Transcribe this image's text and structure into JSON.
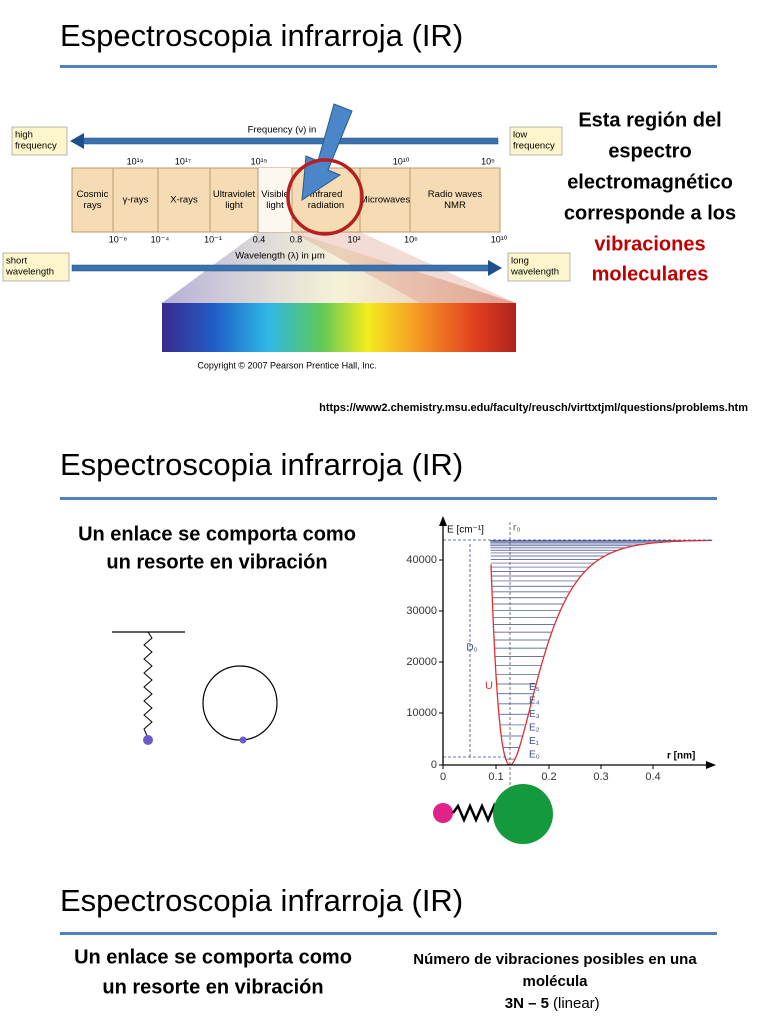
{
  "slides": [
    {
      "title": "Espectroscopia infrarroja (IR)",
      "figure": {
        "frequency_axis": "Frequency (ν) in",
        "high_frequency": [
          "high",
          "frequency"
        ],
        "low_frequency": [
          "low",
          "frequency"
        ],
        "frequency_ticks": [
          "10¹⁹",
          "10¹⁷",
          "10¹⁵",
          "10¹⁰",
          "10⁵"
        ],
        "regions": [
          [
            "Cosmic",
            "rays"
          ],
          [
            "γ-rays"
          ],
          [
            "X-rays"
          ],
          [
            "Ultraviolet",
            "light"
          ],
          [
            "Visible",
            "light"
          ],
          [
            "Infrared",
            "radiation"
          ],
          [
            "Microwaves"
          ],
          [
            "Radio waves",
            "NMR"
          ]
        ],
        "wavelength_ticks": [
          "10⁻⁶",
          "10⁻⁴",
          "10⁻¹",
          "0.4",
          "0.8",
          "10²",
          "10⁶",
          "10¹⁰"
        ],
        "wavelength_axis": "Wavelength (λ) in μm",
        "short_wavelength": [
          "short",
          "wavelength"
        ],
        "long_wavelength": [
          "long",
          "wavelength"
        ],
        "copyright": "Copyright © 2007 Pearson Prentice Hall, Inc."
      },
      "note": [
        "Esta región del",
        "espectro",
        "electromagnético",
        "corresponde a los"
      ],
      "highlight": [
        "vibraciones",
        "moleculares"
      ],
      "source": "https://www2.chemistry.msu.edu/faculty/reusch/virttxtjml/questions/problems.htm"
    },
    {
      "title": "Espectroscopia infrarroja (IR)",
      "caption": [
        "Un enlace se comporta como",
        "un resorte en vibración"
      ],
      "plot": {
        "y_label": "E [cm⁻¹]",
        "r0_label": "r₀",
        "y_ticks": [
          "40000",
          "30000",
          "20000",
          "10000",
          "0"
        ],
        "x_ticks": [
          "0",
          "0.1",
          "0.2",
          "0.3",
          "0.4"
        ],
        "x_label": "r [nm]",
        "d0_label": "D₀",
        "u_label": "U",
        "levels": [
          "E₀",
          "E₁",
          "E₂",
          "E₃",
          "E₄",
          "E₅"
        ]
      }
    },
    {
      "title": "Espectroscopia infrarroja (IR)",
      "caption": [
        "Un enlace se comporta como",
        "un resorte en vibración"
      ],
      "heading": [
        "Número de vibraciones posibles en una",
        "molécula"
      ],
      "formula": "3N – 5",
      "formula_note": "(linear)"
    }
  ]
}
